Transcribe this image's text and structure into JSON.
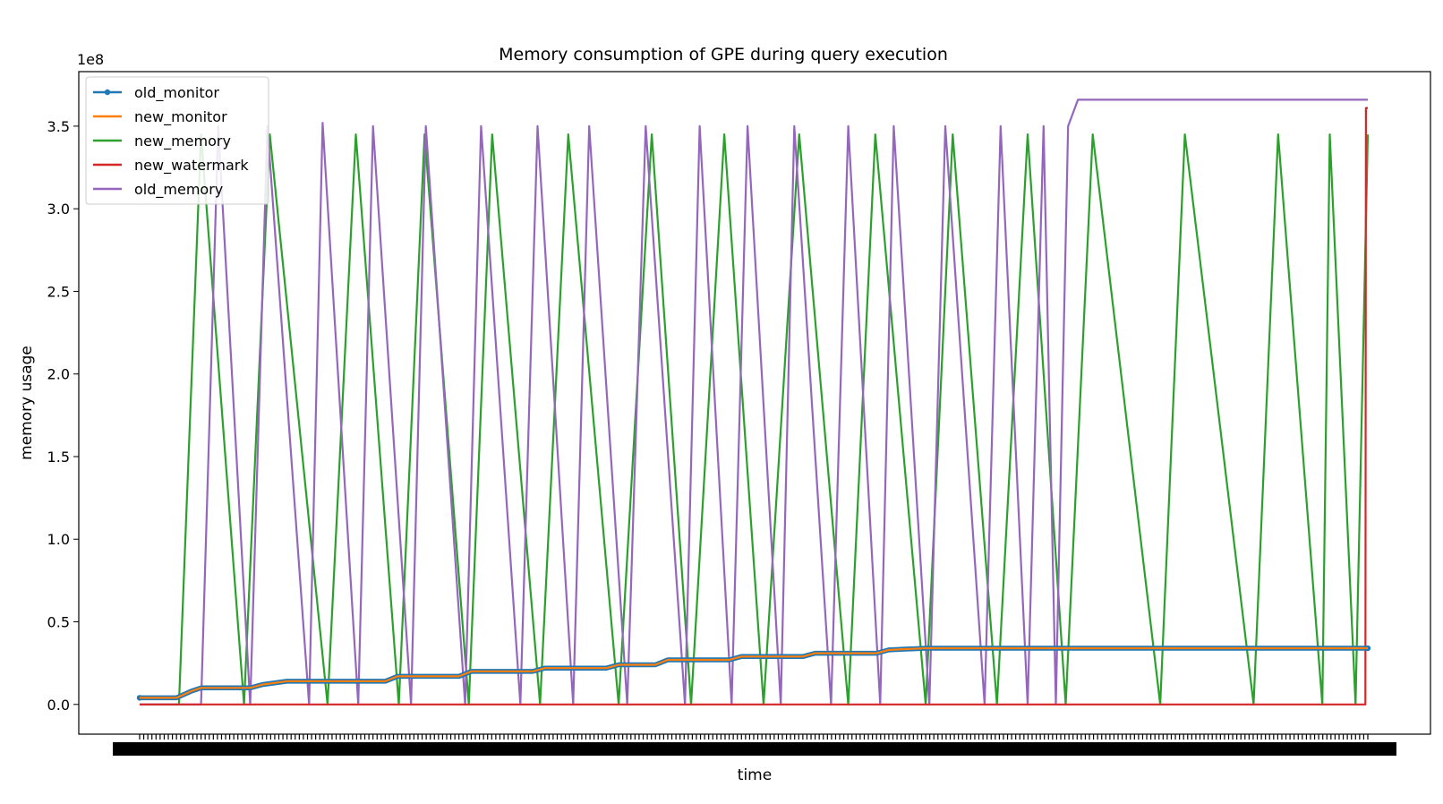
{
  "chart_data": {
    "type": "line",
    "title": "Memory consumption of GPE during query execution",
    "xlabel": "time",
    "ylabel": "memory usage",
    "offset_text": "1e8",
    "xlim": [
      0,
      100
    ],
    "ylim": [
      -0.18,
      3.83
    ],
    "y_ticks": [
      0.0,
      0.5,
      1.0,
      1.5,
      2.0,
      2.5,
      3.0,
      3.5
    ],
    "y_tick_labels": [
      "0.0",
      "0.5",
      "1.0",
      "1.5",
      "2.0",
      "2.5",
      "3.0",
      "3.5"
    ],
    "x_tick_labels_note": "dense overlapping timestamp labels (illegible)",
    "legend_position": "upper left",
    "grid": false,
    "series": [
      {
        "name": "old_monitor",
        "color": "#1f77b4",
        "marker": "dot",
        "x": [
          0,
          3,
          4.2,
          5,
          9,
          10,
          12,
          20,
          21,
          26,
          27,
          32,
          33,
          38,
          39,
          42,
          43,
          48,
          49,
          54,
          55,
          60,
          61,
          64,
          100
        ],
        "y": [
          0.04,
          0.04,
          0.08,
          0.1,
          0.1,
          0.12,
          0.14,
          0.14,
          0.17,
          0.17,
          0.2,
          0.2,
          0.22,
          0.22,
          0.24,
          0.24,
          0.27,
          0.27,
          0.29,
          0.29,
          0.31,
          0.31,
          0.33,
          0.34,
          0.34
        ]
      },
      {
        "name": "new_monitor",
        "color": "#ff7f0e",
        "x": [
          0,
          3,
          4.2,
          5,
          9,
          10,
          12,
          20,
          21,
          26,
          27,
          32,
          33,
          38,
          39,
          42,
          43,
          48,
          49,
          54,
          55,
          60,
          61,
          64,
          100
        ],
        "y": [
          0.04,
          0.04,
          0.08,
          0.1,
          0.1,
          0.12,
          0.14,
          0.14,
          0.17,
          0.17,
          0.2,
          0.2,
          0.22,
          0.22,
          0.24,
          0.24,
          0.27,
          0.27,
          0.29,
          0.29,
          0.31,
          0.31,
          0.33,
          0.34,
          0.34
        ]
      },
      {
        "name": "new_memory",
        "color": "#2ca02c",
        "x": [
          0,
          3.2,
          5.0,
          8.5,
          10.6,
          15.3,
          17.6,
          21.1,
          23.2,
          26.8,
          28.7,
          32.6,
          34.9,
          39.0,
          41.7,
          44.9,
          47.6,
          50.8,
          53.7,
          57.7,
          59.9,
          64.0,
          66.2,
          69.8,
          72.3,
          75.4,
          77.6,
          83.1,
          85.1,
          90.7,
          92.7,
          96.3,
          96.9,
          99.0,
          100
        ],
        "y": [
          0,
          0,
          3.45,
          0,
          3.45,
          0,
          3.45,
          0,
          3.45,
          0,
          3.45,
          0,
          3.45,
          0,
          3.45,
          0,
          3.45,
          0,
          3.45,
          0,
          3.45,
          0,
          3.45,
          0,
          3.45,
          0,
          3.45,
          0,
          3.45,
          0,
          3.45,
          0,
          3.45,
          0,
          3.45
        ]
      },
      {
        "name": "new_watermark",
        "color": "#d62728",
        "x": [
          0,
          99.8,
          99.85,
          100
        ],
        "y": [
          0,
          0,
          3.61,
          3.61
        ]
      },
      {
        "name": "old_memory",
        "color": "#9467bd",
        "x": [
          0,
          5.0,
          6.4,
          9.0,
          10.4,
          13.8,
          14.9,
          17.8,
          19.0,
          22.1,
          23.3,
          26.5,
          27.8,
          31.0,
          32.4,
          35.3,
          36.6,
          39.7,
          41.2,
          44.4,
          45.6,
          48.2,
          49.5,
          52.2,
          53.3,
          56.3,
          57.7,
          60.3,
          61.4,
          64.3,
          65.6,
          68.8,
          70.1,
          72.3,
          73.6,
          74.6,
          75.6,
          76.4,
          100
        ],
        "y": [
          0,
          0,
          3.5,
          0,
          3.5,
          0,
          3.52,
          0,
          3.5,
          0,
          3.5,
          0,
          3.5,
          0,
          3.5,
          0,
          3.5,
          0,
          3.5,
          0,
          3.5,
          0,
          3.5,
          0,
          3.5,
          0,
          3.5,
          0,
          3.5,
          0,
          3.5,
          0,
          3.5,
          0,
          3.5,
          0,
          3.5,
          3.66,
          3.66
        ]
      }
    ]
  }
}
